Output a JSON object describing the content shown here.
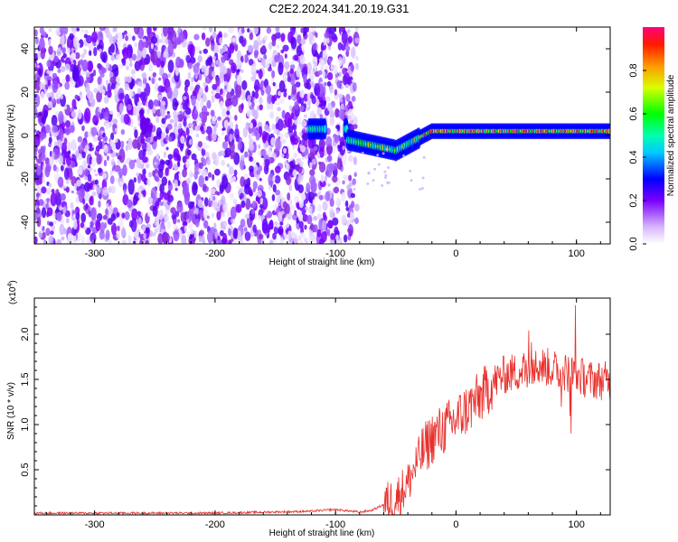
{
  "title": "C2E2.2024.341.20.19.G31",
  "spectrogram": {
    "type": "heatmap",
    "xlabel": "Height of straight line (km)",
    "ylabel": "Frequency (Hz)",
    "xlim": [
      -350,
      128
    ],
    "ylim": [
      -50,
      50
    ],
    "x_ticks": [
      -300,
      -200,
      -100,
      0,
      100
    ],
    "y_ticks": [
      -40,
      -20,
      0,
      20,
      40
    ],
    "colorbar": {
      "label": "Normalized spectral amplitude",
      "range": [
        0,
        1
      ],
      "ticks": [
        "0.0",
        "0.2",
        "0.4",
        "0.6",
        "0.8"
      ],
      "tick_values": [
        0,
        0.2,
        0.4,
        0.6,
        0.8
      ]
    }
  },
  "snr": {
    "type": "line",
    "xlabel": "Height of straight line (km)",
    "ylabel": "SNR (10 * v/v)",
    "scale_label": "(x10",
    "scale_exp": "4",
    "scale_close": ")",
    "xlim": [
      -350,
      128
    ],
    "ylim": [
      0,
      2.4
    ],
    "x_ticks": [
      -300,
      -200,
      -100,
      0,
      100
    ],
    "y_ticks": [
      "0.5",
      "1.0",
      "1.5",
      "2.0"
    ],
    "y_tick_values": [
      0.5,
      1.0,
      1.5,
      2.0
    ],
    "color": "#e8302c",
    "trend_points": [
      [
        -350,
        0.02
      ],
      [
        -200,
        0.02
      ],
      [
        -120,
        0.04
      ],
      [
        -100,
        0.06
      ],
      [
        -80,
        0.03
      ],
      [
        -70,
        0.05
      ],
      [
        -50,
        0.18
      ],
      [
        -40,
        0.35
      ],
      [
        -30,
        0.65
      ],
      [
        -20,
        0.85
      ],
      [
        -10,
        0.95
      ],
      [
        0,
        1.05
      ],
      [
        10,
        1.18
      ],
      [
        20,
        1.3
      ],
      [
        30,
        1.45
      ],
      [
        40,
        1.55
      ],
      [
        50,
        1.58
      ],
      [
        60,
        1.62
      ],
      [
        70,
        1.65
      ],
      [
        80,
        1.62
      ],
      [
        90,
        1.58
      ],
      [
        100,
        1.55
      ],
      [
        110,
        1.5
      ],
      [
        128,
        1.48
      ]
    ]
  }
}
